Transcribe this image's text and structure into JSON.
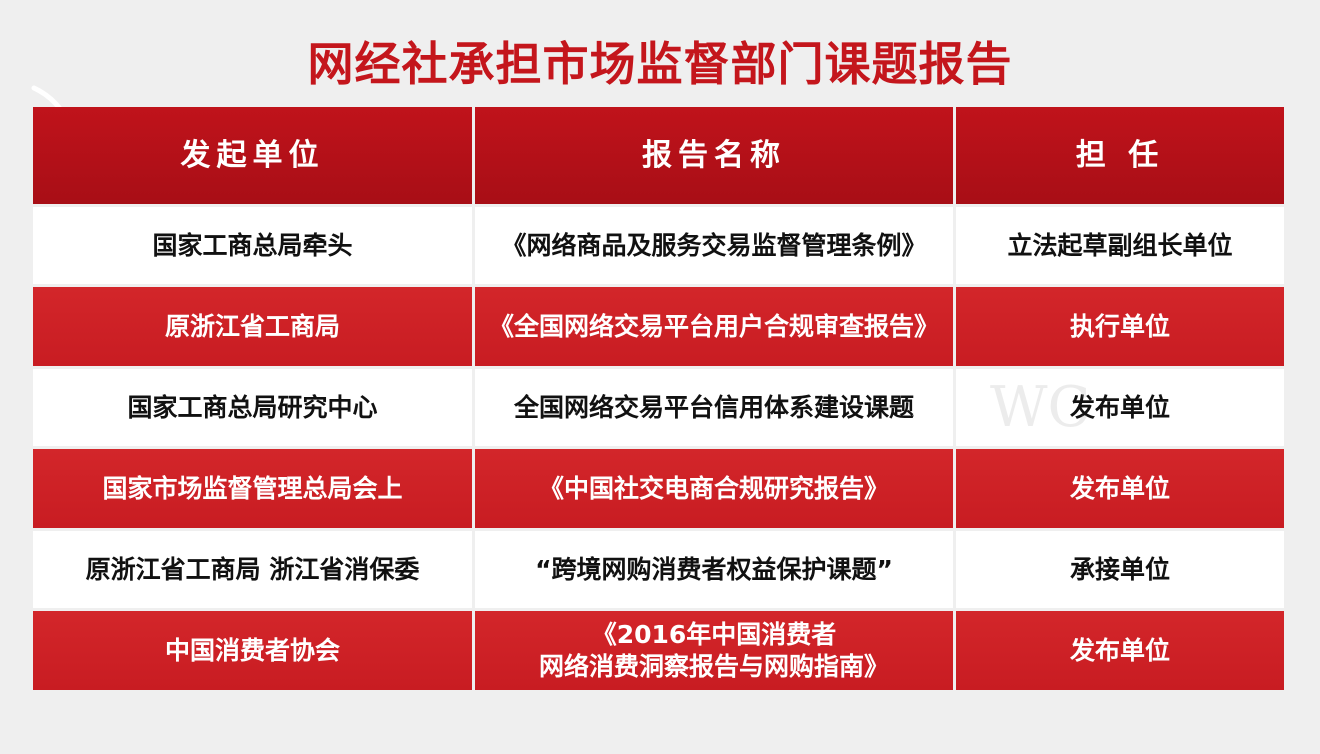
{
  "title": "网经社承担市场监督部门课题报告",
  "headers": [
    "发起单位",
    "报告名称",
    "担 任"
  ],
  "rows": [
    {
      "unit": "国家工商总局牵头",
      "report": "《网络商品及服务交易监督管理条例》",
      "role": "立法起草副组长单位",
      "style": "white"
    },
    {
      "unit": "原浙江省工商局",
      "report": "《全国网络交易平台用户合规审查报告》",
      "role": "执行单位",
      "style": "red"
    },
    {
      "unit": "国家工商总局研究中心",
      "report": "全国网络交易平台信用体系建设课题",
      "role": "发布单位",
      "style": "white"
    },
    {
      "unit": "国家市场监督管理总局会上",
      "report": "《中国社交电商合规研究报告》",
      "role": "发布单位",
      "style": "red"
    },
    {
      "unit": "原浙江省工商局  浙江省消保委",
      "report": "“跨境网购消费者权益保护课题”",
      "role": "承接单位",
      "style": "white"
    },
    {
      "unit": "中国消费者协会",
      "report": "《2016年中国消费者\n网络消费洞察报告与网购指南》",
      "role": "发布单位",
      "style": "red"
    }
  ],
  "colors": {
    "title": "#c4161c",
    "header": "#b5121b",
    "row_red": "#cf2227",
    "row_white": "#ffffff"
  }
}
